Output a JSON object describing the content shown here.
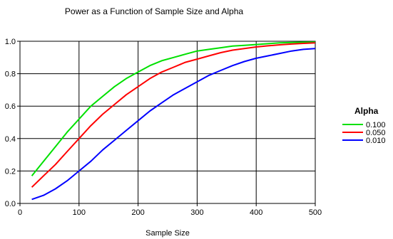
{
  "chart_data": {
    "type": "line",
    "title": "Power as a Function of Sample Size and Alpha",
    "xlabel": "Sample Size",
    "ylabel": "",
    "xlim": [
      0,
      500
    ],
    "ylim": [
      0,
      1
    ],
    "xticks": [
      0,
      100,
      200,
      300,
      400,
      500
    ],
    "yticks": [
      0.0,
      0.2,
      0.4,
      0.6,
      0.8,
      1.0
    ],
    "xtick_labels": [
      "0",
      "100",
      "200",
      "300",
      "400",
      "500"
    ],
    "ytick_labels": [
      "0.0",
      "0.2",
      "0.4",
      "0.6",
      "0.8",
      "1.0"
    ],
    "grid": true,
    "legend_title": "Alpha",
    "legend_position": "right",
    "series": [
      {
        "name": "0.100",
        "color": "#00e000",
        "x": [
          20,
          40,
          60,
          80,
          100,
          120,
          140,
          160,
          180,
          200,
          220,
          240,
          260,
          280,
          300,
          320,
          340,
          360,
          380,
          400,
          420,
          440,
          460,
          480,
          500
        ],
        "y": [
          0.17,
          0.26,
          0.35,
          0.44,
          0.52,
          0.6,
          0.66,
          0.72,
          0.77,
          0.81,
          0.85,
          0.88,
          0.9,
          0.92,
          0.94,
          0.95,
          0.96,
          0.97,
          0.975,
          0.98,
          0.985,
          0.99,
          0.992,
          0.994,
          0.995
        ]
      },
      {
        "name": "0.050",
        "color": "#ff0000",
        "x": [
          20,
          40,
          60,
          80,
          100,
          120,
          140,
          160,
          180,
          200,
          220,
          240,
          260,
          280,
          300,
          320,
          340,
          360,
          380,
          400,
          420,
          440,
          460,
          480,
          500
        ],
        "y": [
          0.1,
          0.17,
          0.24,
          0.32,
          0.4,
          0.48,
          0.55,
          0.61,
          0.67,
          0.72,
          0.77,
          0.81,
          0.84,
          0.87,
          0.89,
          0.91,
          0.93,
          0.945,
          0.955,
          0.965,
          0.972,
          0.978,
          0.983,
          0.987,
          0.99
        ]
      },
      {
        "name": "0.010",
        "color": "#0000ff",
        "x": [
          20,
          40,
          60,
          80,
          100,
          120,
          140,
          160,
          180,
          200,
          220,
          240,
          260,
          280,
          300,
          320,
          340,
          360,
          380,
          400,
          420,
          440,
          460,
          480,
          500
        ],
        "y": [
          0.025,
          0.05,
          0.09,
          0.14,
          0.2,
          0.26,
          0.33,
          0.39,
          0.45,
          0.51,
          0.57,
          0.62,
          0.67,
          0.71,
          0.75,
          0.79,
          0.82,
          0.85,
          0.875,
          0.895,
          0.91,
          0.925,
          0.94,
          0.95,
          0.955
        ]
      }
    ]
  }
}
